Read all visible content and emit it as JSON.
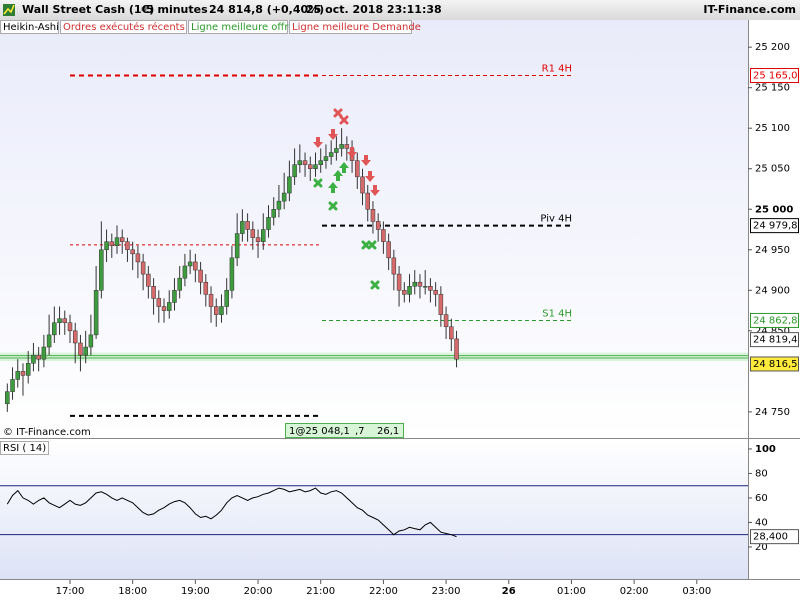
{
  "header": {
    "instrument": "Wall Street Cash (1€)",
    "interval": "5 minutes",
    "quote": "24 814,8 (+0,40%)",
    "datetime": "25 oct. 2018 23:11:38",
    "brand": "IT-Finance.com"
  },
  "tabs": [
    {
      "label": "Heikin-Ashi",
      "color": "#000000"
    },
    {
      "label": "Ordres exécutés récents",
      "color": "#d03030"
    },
    {
      "label": "Ligne meilleure offre",
      "color": "#2a9a2a"
    },
    {
      "label": "Ligne meilleure Demande",
      "color": "#d03030"
    }
  ],
  "footer": {
    "copyright": "© IT-Finance.com",
    "order_box": [
      "1@25 048,1",
      ",7",
      "26,1"
    ]
  },
  "chart_data": [
    {
      "type": "candlestick",
      "colors": {
        "up": "#3e9c3e",
        "down": "#d46a6a"
      },
      "x": [
        960,
        965,
        970,
        975,
        980,
        985,
        990,
        995,
        1000,
        1005,
        1010,
        1015,
        1020,
        1025,
        1030,
        1035,
        1040,
        1045,
        1050,
        1055,
        1060,
        1065,
        1070,
        1075,
        1080,
        1085,
        1090,
        1095,
        1100,
        1105,
        1110,
        1115,
        1120,
        1125,
        1130,
        1135,
        1140,
        1145,
        1150,
        1155,
        1160,
        1165,
        1170,
        1175,
        1180,
        1185,
        1190,
        1195,
        1200,
        1205,
        1210,
        1215,
        1220,
        1225,
        1230,
        1235,
        1240,
        1245,
        1250,
        1255,
        1260,
        1265,
        1270,
        1275,
        1280,
        1285,
        1290,
        1295,
        1300,
        1305,
        1310,
        1315,
        1320,
        1325,
        1330,
        1335,
        1340,
        1345,
        1350,
        1355,
        1360,
        1365,
        1370,
        1375,
        1380,
        1385,
        1390
      ],
      "ohlc": [
        [
          24760,
          24785,
          24750,
          24775
        ],
        [
          24775,
          24805,
          24765,
          24790
        ],
        [
          24790,
          24815,
          24780,
          24800
        ],
        [
          24800,
          24810,
          24770,
          24795
        ],
        [
          24795,
          24825,
          24785,
          24810
        ],
        [
          24810,
          24835,
          24800,
          24820
        ],
        [
          24820,
          24830,
          24800,
          24815
        ],
        [
          24815,
          24845,
          24805,
          24830
        ],
        [
          24830,
          24870,
          24820,
          24845
        ],
        [
          24845,
          24880,
          24835,
          24860
        ],
        [
          24860,
          24880,
          24845,
          24865
        ],
        [
          24865,
          24875,
          24845,
          24860
        ],
        [
          24860,
          24870,
          24835,
          24850
        ],
        [
          24850,
          24860,
          24810,
          24835
        ],
        [
          24835,
          24845,
          24800,
          24820
        ],
        [
          24820,
          24850,
          24810,
          24830
        ],
        [
          24830,
          24870,
          24820,
          24845
        ],
        [
          24845,
          24930,
          24840,
          24900
        ],
        [
          24900,
          24985,
          24890,
          24950
        ],
        [
          24950,
          24975,
          24935,
          24960
        ],
        [
          24960,
          24970,
          24940,
          24955
        ],
        [
          24955,
          24980,
          24945,
          24965
        ],
        [
          24965,
          24975,
          24945,
          24960
        ],
        [
          24960,
          24965,
          24935,
          24950
        ],
        [
          24950,
          24960,
          24925,
          24945
        ],
        [
          24945,
          24955,
          24915,
          24935
        ],
        [
          24935,
          24945,
          24900,
          24920
        ],
        [
          24920,
          24930,
          24890,
          24905
        ],
        [
          24905,
          24915,
          24870,
          24890
        ],
        [
          24890,
          24900,
          24860,
          24880
        ],
        [
          24880,
          24890,
          24860,
          24875
        ],
        [
          24875,
          24900,
          24865,
          24885
        ],
        [
          24885,
          24915,
          24875,
          24900
        ],
        [
          24900,
          24930,
          24890,
          24915
        ],
        [
          24915,
          24945,
          24905,
          24930
        ],
        [
          24930,
          24950,
          24920,
          24935
        ],
        [
          24935,
          24945,
          24910,
          24925
        ],
        [
          24925,
          24935,
          24895,
          24910
        ],
        [
          24910,
          24920,
          24880,
          24895
        ],
        [
          24895,
          24905,
          24860,
          24880
        ],
        [
          24880,
          24890,
          24855,
          24870
        ],
        [
          24870,
          24895,
          24860,
          24880
        ],
        [
          24880,
          24915,
          24870,
          24900
        ],
        [
          24900,
          24955,
          24890,
          24940
        ],
        [
          24940,
          24995,
          24930,
          24970
        ],
        [
          24970,
          25000,
          24960,
          24985
        ],
        [
          24985,
          24995,
          24960,
          24975
        ],
        [
          24975,
          24985,
          24950,
          24965
        ],
        [
          24965,
          24975,
          24940,
          24960
        ],
        [
          24960,
          24995,
          24950,
          24975
        ],
        [
          24975,
          25005,
          24965,
          24990
        ],
        [
          24990,
          25015,
          24980,
          25000
        ],
        [
          25000,
          25030,
          24990,
          25010
        ],
        [
          25010,
          25045,
          25000,
          25020
        ],
        [
          25020,
          25060,
          25010,
          25040
        ],
        [
          25040,
          25075,
          25030,
          25055
        ],
        [
          25055,
          25080,
          25045,
          25060
        ],
        [
          25060,
          25070,
          25040,
          25055
        ],
        [
          25055,
          25065,
          25035,
          25050
        ],
        [
          25050,
          25070,
          25040,
          25055
        ],
        [
          25055,
          25075,
          25045,
          25060
        ],
        [
          25060,
          25080,
          25050,
          25065
        ],
        [
          25065,
          25085,
          25055,
          25070
        ],
        [
          25070,
          25090,
          25060,
          25075
        ],
        [
          25075,
          25100,
          25065,
          25080
        ],
        [
          25080,
          25090,
          25060,
          25075
        ],
        [
          25075,
          25085,
          25045,
          25060
        ],
        [
          25060,
          25070,
          25025,
          25040
        ],
        [
          25040,
          25050,
          25005,
          25020
        ],
        [
          25020,
          25030,
          24985,
          25000
        ],
        [
          25000,
          25010,
          24970,
          24985
        ],
        [
          24985,
          24995,
          24960,
          24975
        ],
        [
          24975,
          24985,
          24945,
          24960
        ],
        [
          24960,
          24970,
          24925,
          24940
        ],
        [
          24940,
          24950,
          24900,
          24920
        ],
        [
          24920,
          24930,
          24880,
          24900
        ],
        [
          24900,
          24910,
          24885,
          24895
        ],
        [
          24895,
          24920,
          24885,
          24905
        ],
        [
          24905,
          24925,
          24895,
          24910
        ],
        [
          24910,
          24920,
          24890,
          24905
        ],
        [
          24905,
          24925,
          24895,
          24905
        ],
        [
          24905,
          24915,
          24885,
          24900
        ],
        [
          24900,
          24910,
          24880,
          24895
        ],
        [
          24895,
          24905,
          24855,
          24870
        ],
        [
          24870,
          24880,
          24840,
          24855
        ],
        [
          24855,
          24865,
          24825,
          24840
        ],
        [
          24840,
          24850,
          24805,
          24815
        ]
      ],
      "xlim": [
        953,
        1669
      ],
      "xticks": [
        {
          "value": 1020,
          "label": "17:00"
        },
        {
          "value": 1080,
          "label": "18:00"
        },
        {
          "value": 1140,
          "label": "19:00"
        },
        {
          "value": 1200,
          "label": "20:00"
        },
        {
          "value": 1260,
          "label": "21:00"
        },
        {
          "value": 1320,
          "label": "22:00"
        },
        {
          "value": 1380,
          "label": "23:00"
        },
        {
          "value": 1440,
          "label": "26"
        },
        {
          "value": 1500,
          "label": "01:00"
        },
        {
          "value": 1560,
          "label": "02:00"
        },
        {
          "value": 1620,
          "label": "03:00"
        }
      ],
      "ylim": [
        24719,
        25215
      ],
      "yticks": [
        {
          "value": 25200,
          "label": "25 200"
        },
        {
          "value": 25150,
          "label": "25 150"
        },
        {
          "value": 25100,
          "label": "25 100"
        },
        {
          "value": 25050,
          "label": "25 050"
        },
        {
          "value": 25000,
          "label": "25 000"
        },
        {
          "value": 24950,
          "label": "24 950"
        },
        {
          "value": 24900,
          "label": "24 900"
        },
        {
          "value": 24850,
          "label": "24 850"
        },
        {
          "value": 24750,
          "label": "24 750"
        }
      ],
      "levels": [
        {
          "name": "R1 4H",
          "value": 25165,
          "label": "25 165,0",
          "color": "#e00000"
        },
        {
          "name": "Piv 4H",
          "value": 24979.8,
          "label": "24 979,8",
          "color": "#000000"
        },
        {
          "name": "S1 4H",
          "value": 24862.8,
          "label": "24 862,8",
          "color": "#2a9a2a"
        }
      ],
      "prior_levels": [
        {
          "value": 25165,
          "color": "#e00000"
        },
        {
          "value": 24956,
          "color": "#e00000"
        },
        {
          "value": 24745,
          "color": "#000000"
        }
      ],
      "quotes": [
        {
          "value": 24819.4,
          "label": "24 819,4"
        },
        {
          "value": 24816.5,
          "label": "24 816,5"
        }
      ]
    },
    {
      "type": "line",
      "title": "RSI ( 14)",
      "color": "#000000",
      "values": [
        55,
        62,
        66,
        60,
        58,
        55,
        58,
        60,
        56,
        54,
        52,
        55,
        58,
        55,
        54,
        56,
        60,
        64,
        65,
        63,
        60,
        58,
        60,
        58,
        56,
        52,
        48,
        46,
        47,
        50,
        52,
        55,
        57,
        58,
        56,
        52,
        47,
        44,
        45,
        43,
        46,
        50,
        56,
        60,
        62,
        60,
        58,
        60,
        61,
        63,
        64,
        66,
        68,
        67,
        65,
        66,
        67,
        65,
        66,
        68,
        64,
        63,
        65,
        66,
        64,
        60,
        56,
        52,
        50,
        46,
        44,
        42,
        38,
        34,
        30,
        33,
        34,
        36,
        35,
        34,
        38,
        40,
        36,
        32,
        31,
        30,
        28.4
      ],
      "current": {
        "value": 28.4,
        "label": "28,400"
      },
      "ylim": [
        -7,
        106.5
      ],
      "yticks": [
        100,
        80,
        60,
        40,
        20
      ],
      "levels": [
        70,
        30
      ],
      "level_color": "#1a237e"
    }
  ]
}
